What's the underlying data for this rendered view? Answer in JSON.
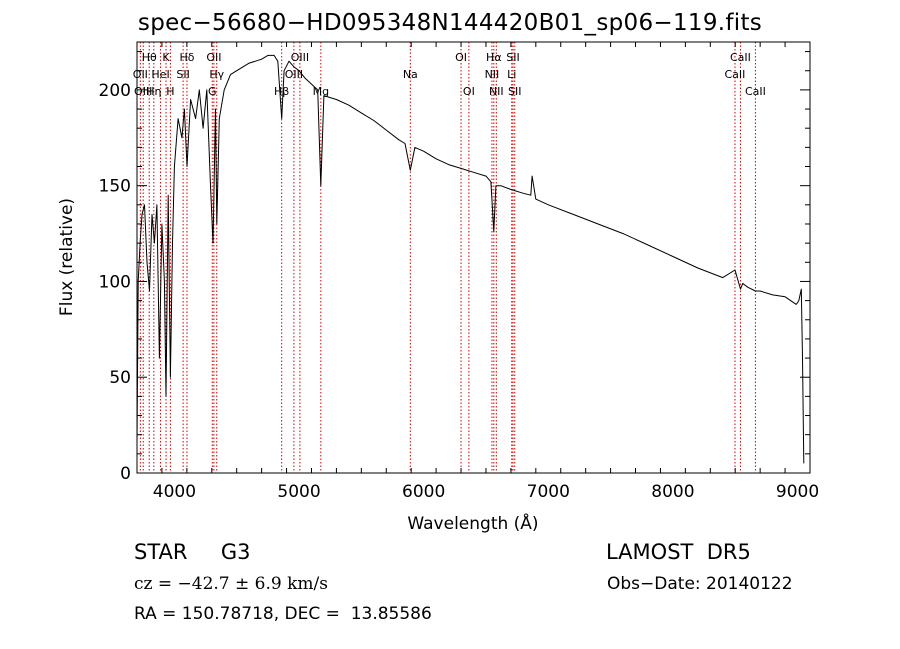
{
  "chart_data": {
    "type": "line",
    "title": "spec−56680−HD095348N144420B01_sp06−119.fits",
    "xlabel": "Wavelength (Å)",
    "ylabel": "Flux (relative)",
    "xlim": [
      3700,
      9100
    ],
    "ylim": [
      0,
      225
    ],
    "xticks": [
      4000,
      5000,
      6000,
      7000,
      8000,
      9000
    ],
    "yticks": [
      0,
      50,
      100,
      150,
      200
    ],
    "grid": false,
    "legend": "none",
    "line_color": "#000000",
    "marker_line_color": "#cc0000",
    "spectrum": {
      "x": [
        3700,
        3710,
        3725,
        3740,
        3760,
        3780,
        3800,
        3820,
        3840,
        3860,
        3880,
        3900,
        3920,
        3933,
        3950,
        3968,
        3985,
        4000,
        4030,
        4060,
        4080,
        4101,
        4130,
        4170,
        4200,
        4230,
        4260,
        4290,
        4310,
        4330,
        4340,
        4360,
        4400,
        4450,
        4500,
        4550,
        4600,
        4650,
        4700,
        4750,
        4800,
        4830,
        4861,
        4880,
        4920,
        4960,
        5000,
        5050,
        5100,
        5150,
        5175,
        5200,
        5300,
        5400,
        5500,
        5600,
        5700,
        5800,
        5850,
        5893,
        5930,
        6000,
        6100,
        6200,
        6300,
        6400,
        6500,
        6540,
        6563,
        6580,
        6620,
        6700,
        6800,
        6860,
        6870,
        6900,
        7000,
        7200,
        7400,
        7600,
        7800,
        8000,
        8200,
        8400,
        8498,
        8542,
        8560,
        8600,
        8662,
        8700,
        8800,
        8900,
        8990,
        9010,
        9030,
        9040,
        9050
      ],
      "y": [
        15,
        100,
        120,
        135,
        140,
        110,
        95,
        135,
        120,
        140,
        60,
        130,
        100,
        40,
        145,
        50,
        120,
        160,
        185,
        175,
        190,
        160,
        195,
        185,
        200,
        180,
        200,
        150,
        120,
        190,
        130,
        185,
        200,
        208,
        210,
        212,
        214,
        215,
        216,
        218,
        218,
        215,
        185,
        210,
        215,
        212,
        210,
        206,
        203,
        200,
        150,
        197,
        195,
        192,
        188,
        184,
        179,
        174,
        172,
        158,
        170,
        168,
        164,
        161,
        159,
        157,
        155,
        152,
        126,
        150,
        150,
        148,
        146,
        145,
        155,
        143,
        140,
        135,
        130,
        125,
        119,
        113,
        107,
        102,
        106,
        96,
        99,
        97,
        95,
        95,
        93,
        92,
        88,
        90,
        96,
        60,
        5
      ]
    },
    "line_markers": [
      {
        "label": "Hθ",
        "wavelength": 3798,
        "row": 1
      },
      {
        "label": "OII",
        "wavelength": 3727,
        "row": 2
      },
      {
        "label": "OIII",
        "wavelength": 3750,
        "row": 3
      },
      {
        "label": "K",
        "wavelength": 3933,
        "row": 1
      },
      {
        "label": "HeI",
        "wavelength": 3889,
        "row": 2
      },
      {
        "label": "Hη",
        "wavelength": 3835,
        "row": 3
      },
      {
        "label": "Hδ",
        "wavelength": 4101,
        "row": 1
      },
      {
        "label": "SII",
        "wavelength": 4070,
        "row": 2
      },
      {
        "label": "H",
        "wavelength": 3968,
        "row": 3
      },
      {
        "label": "OII",
        "wavelength": 4317,
        "row": 1
      },
      {
        "label": "Hγ",
        "wavelength": 4340,
        "row": 2
      },
      {
        "label": "G",
        "wavelength": 4304,
        "row": 3
      },
      {
        "label": "OIII",
        "wavelength": 5007,
        "row": 1
      },
      {
        "label": "OIII",
        "wavelength": 4959,
        "row": 2
      },
      {
        "label": "Hβ",
        "wavelength": 4861,
        "row": 3
      },
      {
        "label": "Mg",
        "wavelength": 5175,
        "row": 3
      },
      {
        "label": "Na",
        "wavelength": 5893,
        "row": 2
      },
      {
        "label": "OI",
        "wavelength": 6300,
        "row": 1
      },
      {
        "label": "OI",
        "wavelength": 6363,
        "row": 3
      },
      {
        "label": "Hα",
        "wavelength": 6563,
        "row": 1
      },
      {
        "label": "SII",
        "wavelength": 6717,
        "row": 1
      },
      {
        "label": "NII",
        "wavelength": 6548,
        "row": 2
      },
      {
        "label": "Li",
        "wavelength": 6707,
        "row": 2
      },
      {
        "label": "NII",
        "wavelength": 6583,
        "row": 3
      },
      {
        "label": "SII",
        "wavelength": 6731,
        "row": 3
      },
      {
        "label": "CaII",
        "wavelength": 8542,
        "row": 1
      },
      {
        "label": "CaII",
        "wavelength": 8498,
        "row": 2
      },
      {
        "label": "CaII",
        "wavelength": 8662,
        "row": 3
      }
    ]
  },
  "info": {
    "object_class": "STAR     G3",
    "survey": "LAMOST  DR5",
    "cz": "cz = −42.7 ± 6.9 km/s",
    "obs_date": "Obs−Date: 20140122",
    "radec": "RA = 150.78718, DEC =  13.85586"
  }
}
